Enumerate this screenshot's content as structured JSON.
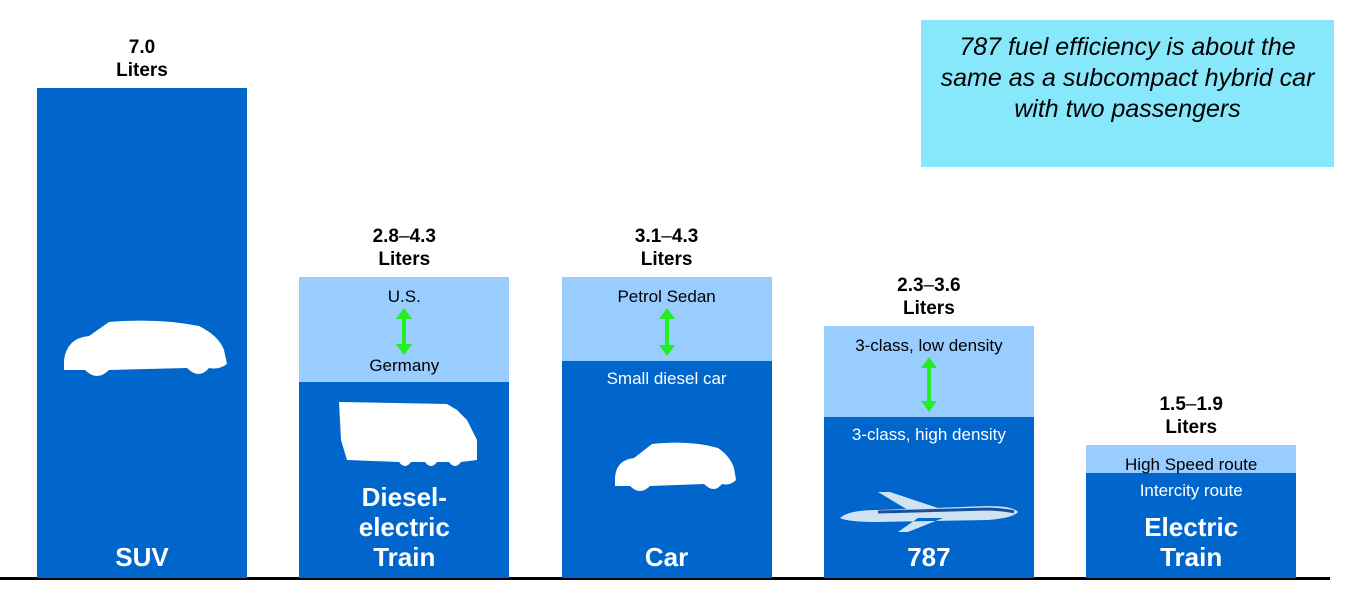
{
  "chart_data": {
    "type": "range-bar",
    "categories": [
      "SUV",
      "Diesel-electric Train",
      "Car",
      "787",
      "Electric Train"
    ],
    "values": [
      7.0,
      4.3,
      4.3,
      3.6,
      1.9
    ],
    "value_labels": [
      "7.0",
      "4.3",
      "4.3",
      "3.6",
      "1.9"
    ],
    "low": [
      null,
      2.8,
      3.1,
      2.3,
      1.5
    ],
    "low_labels": [
      null,
      "2.8",
      "3.1",
      "2.3",
      "1.5"
    ],
    "range_separator": "–",
    "unit": "Liters",
    "high_names": [
      null,
      "U.S.",
      "Petrol Sedan",
      "3-class, low density",
      "High Speed route"
    ],
    "low_names": [
      null,
      "Germany",
      "Small diesel car",
      "3-class, high density",
      "Intercity route"
    ],
    "annotation": "787 fuel efficiency is about the same as a subcompact hybrid car with two passengers",
    "colors": {
      "bar": "#0066cc",
      "range": "#99ccff",
      "arrow": "#22ee22",
      "annotation": "#88e8fb"
    }
  }
}
